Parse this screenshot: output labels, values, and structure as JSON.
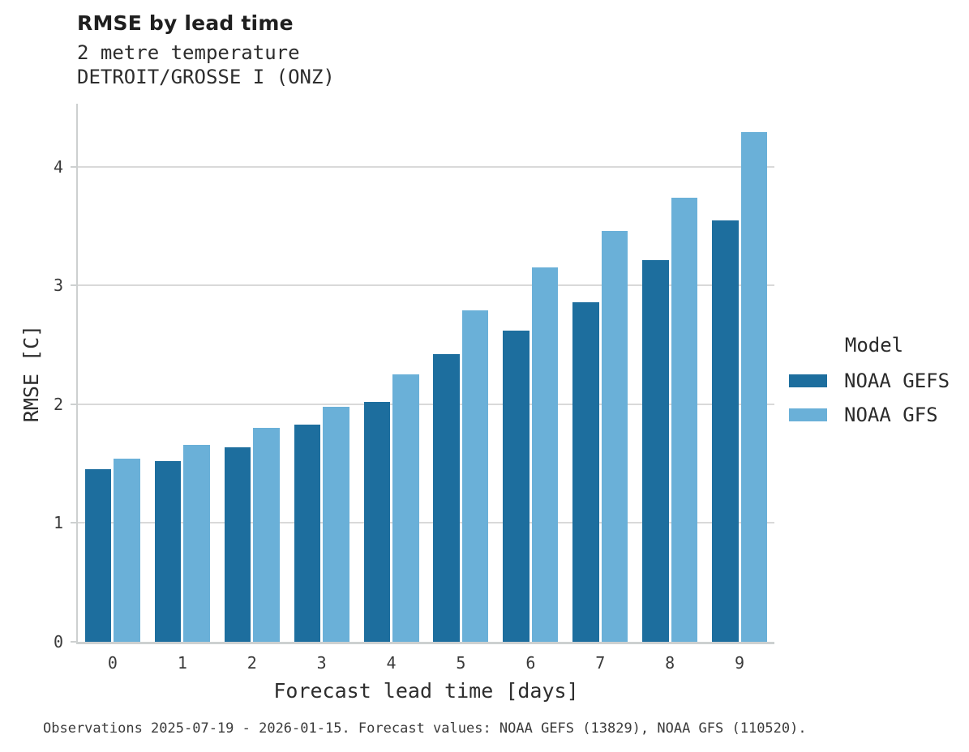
{
  "header": {
    "title": "RMSE by lead time",
    "subtitle_line1": "2 metre temperature",
    "subtitle_line2": "DETROIT/GROSSE I (ONZ)"
  },
  "chart_data": {
    "type": "bar",
    "title": "RMSE by lead time",
    "subtitle": [
      "2 metre temperature",
      "DETROIT/GROSSE I (ONZ)"
    ],
    "categories": [
      "0",
      "1",
      "2",
      "3",
      "4",
      "5",
      "6",
      "7",
      "8",
      "9"
    ],
    "series": [
      {
        "name": "NOAA GEFS",
        "color": "#1d6e9e",
        "values": [
          1.45,
          1.52,
          1.64,
          1.83,
          2.02,
          2.42,
          2.62,
          2.86,
          3.21,
          3.55
        ]
      },
      {
        "name": "NOAA GFS",
        "color": "#6ab0d8",
        "values": [
          1.54,
          1.66,
          1.8,
          1.98,
          2.25,
          2.79,
          3.15,
          3.46,
          3.74,
          4.29
        ]
      }
    ],
    "xlabel": "Forecast lead time [days]",
    "ylabel": "RMSE [C]",
    "ylim": [
      0,
      4.53
    ],
    "yticks": [
      0,
      1,
      2,
      3,
      4
    ],
    "grid": "horizontal",
    "legend_title": "Model",
    "legend_position": "right"
  },
  "footer": {
    "caption": "Observations 2025-07-19 - 2026-01-15. Forecast values: NOAA GEFS (13829), NOAA GFS (110520)."
  }
}
